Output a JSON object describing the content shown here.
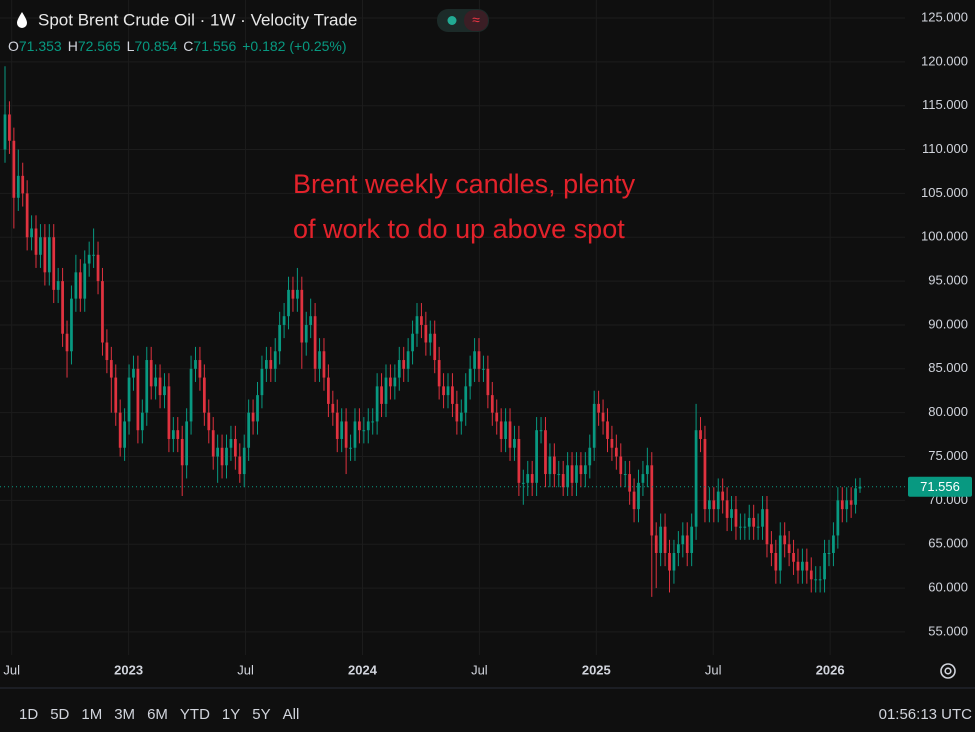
{
  "chart_data": {
    "type": "candlestick",
    "title": "Spot Brent Crude Oil · 1W · Velocity Trade",
    "ohlc_labels": [
      "O",
      "H",
      "L",
      "C"
    ],
    "change": "+0.182 (+0.25%)",
    "annotation": [
      "Brent weekly candles, plenty",
      "of work to do up above spot"
    ],
    "up_color": "#089981",
    "down_color": "#e0323f",
    "grid": true,
    "ylim": [
      52.37,
      127.05
    ],
    "yticks": [
      {
        "value": 55,
        "label": "55.000"
      },
      {
        "value": 60,
        "label": "60.000"
      },
      {
        "value": 65,
        "label": "65.000"
      },
      {
        "value": 70,
        "label": "70.000"
      },
      {
        "value": 75,
        "label": "75.000"
      },
      {
        "value": 80,
        "label": "80.000"
      },
      {
        "value": 85,
        "label": "85.000"
      },
      {
        "value": 90,
        "label": "90.000"
      },
      {
        "value": 95,
        "label": "95.000"
      },
      {
        "value": 100,
        "label": "100.000"
      },
      {
        "value": 105,
        "label": "105.000"
      },
      {
        "value": 110,
        "label": "110.000"
      },
      {
        "value": 115,
        "label": "115.000"
      },
      {
        "value": 120,
        "label": "120.000"
      },
      {
        "value": 125,
        "label": "125.000"
      }
    ],
    "xlim": [
      2022.45,
      2026.32
    ],
    "xticks": [
      {
        "value": 2022.5,
        "label": "Jul"
      },
      2023,
      {
        "value": 2023.5,
        "label": "Jul"
      },
      2024,
      {
        "value": 2024.5,
        "label": "Jul"
      },
      2025,
      {
        "value": 2025.5,
        "label": "Jul"
      },
      2026
    ],
    "open": [
      110,
      114,
      111,
      104.5,
      107,
      105,
      100,
      101,
      98,
      100,
      96,
      100,
      94,
      95,
      89,
      87,
      93,
      96,
      93,
      97,
      98,
      98,
      95,
      88,
      86,
      84,
      80,
      76,
      79,
      84,
      85,
      78,
      80,
      86,
      83,
      84,
      82,
      83,
      77,
      78,
      77,
      74,
      79,
      85,
      86,
      84,
      80,
      78,
      75,
      76,
      74,
      76,
      77,
      75,
      73,
      76,
      80,
      79,
      82,
      85,
      86,
      85,
      87,
      90,
      91,
      94,
      93,
      94,
      88,
      90,
      91,
      85,
      87,
      84,
      81,
      80,
      77,
      79,
      76,
      76,
      79,
      78,
      78,
      79,
      79,
      83,
      81,
      84,
      83,
      84,
      86,
      85,
      87,
      89,
      91,
      90,
      88,
      89,
      86,
      83,
      82,
      83,
      81,
      79,
      80,
      83,
      85,
      87,
      85,
      85,
      82,
      80,
      79,
      77,
      79,
      76,
      77,
      72,
      72,
      73,
      72,
      78,
      78,
      73,
      75,
      73,
      73,
      71.5,
      74,
      72,
      74,
      73,
      74,
      76,
      81,
      80,
      79,
      77,
      76,
      75,
      73,
      73,
      71,
      69,
      72,
      73,
      74,
      66,
      64,
      67,
      64,
      62,
      64,
      65,
      66,
      64,
      67,
      78,
      77,
      69,
      70,
      69,
      71,
      70,
      68,
      69,
      67,
      67,
      67,
      68,
      67,
      67,
      69,
      65,
      64,
      62,
      66,
      65,
      64,
      63,
      62,
      63,
      62,
      61,
      61,
      61,
      64,
      64,
      66,
      70,
      69,
      70,
      69.5,
      71.353
    ],
    "high": [
      119.5,
      115.5,
      112.5,
      110,
      108.5,
      106.5,
      102.5,
      102.5,
      101.5,
      101.5,
      101.5,
      101.5,
      96.5,
      96.5,
      90.5,
      94.5,
      98,
      97.5,
      98.5,
      99.5,
      101,
      99.5,
      96.5,
      89.5,
      87.5,
      85.5,
      81.5,
      80.5,
      85.5,
      86.5,
      86.5,
      81.5,
      87.5,
      87.5,
      85.5,
      85.5,
      84.5,
      84.5,
      79.5,
      79.5,
      78.5,
      80.5,
      86.5,
      87.5,
      87.5,
      85.5,
      81.5,
      79.5,
      77.5,
      77.5,
      77.5,
      78.5,
      78.5,
      76.5,
      77.5,
      81.5,
      81.5,
      83.5,
      86.5,
      87.5,
      87.5,
      88.5,
      91.5,
      92.5,
      95.5,
      95.5,
      96.5,
      95.5,
      91.5,
      93,
      92.5,
      88.5,
      88.5,
      85.5,
      82.5,
      81.5,
      80.5,
      80.5,
      77.5,
      80.5,
      80.5,
      79.5,
      80.5,
      80.5,
      84.5,
      84.5,
      85.5,
      85.5,
      85.5,
      87.5,
      87.5,
      88.5,
      90.5,
      92.5,
      92.5,
      91.5,
      90.5,
      90.5,
      87.5,
      84.5,
      84.5,
      84.5,
      82.5,
      81.5,
      84.5,
      86.5,
      88.5,
      88.5,
      86.5,
      86.5,
      83.5,
      81.5,
      80.5,
      80.5,
      80.5,
      78.5,
      78.5,
      73.5,
      74.5,
      74.5,
      79.5,
      79.5,
      79.5,
      76.5,
      76.5,
      74.5,
      74.5,
      75.5,
      75.5,
      75.5,
      75.5,
      75.5,
      77.5,
      82.5,
      82.5,
      81.5,
      80.5,
      78.5,
      77.5,
      76.5,
      74.5,
      74.5,
      72.5,
      73.5,
      74.5,
      76,
      75.5,
      67.5,
      68.5,
      68.5,
      65.5,
      65.5,
      66.5,
      67.5,
      67.5,
      68.5,
      81,
      79.5,
      78.5,
      71.5,
      71.5,
      72.5,
      72.5,
      71.5,
      70.5,
      70.5,
      68.5,
      68.5,
      69.5,
      69.5,
      68.5,
      70.5,
      70.5,
      66.5,
      65.5,
      67.5,
      67.5,
      66.5,
      65.5,
      64.5,
      64.5,
      64.5,
      63.5,
      62.5,
      62.5,
      65.5,
      65.5,
      67.5,
      71.5,
      71.5,
      71.5,
      71.5,
      72.5,
      72.565
    ],
    "low": [
      108.5,
      109.5,
      101,
      103,
      103.5,
      98.5,
      98.5,
      96.5,
      96.5,
      94.5,
      94.5,
      92.5,
      92.5,
      87.5,
      84,
      85.5,
      91.5,
      91.5,
      91.5,
      95.5,
      96.5,
      93.5,
      86.5,
      84.5,
      80,
      78.5,
      75,
      74.5,
      77.5,
      82.5,
      76.5,
      76.5,
      78.5,
      81.5,
      81.5,
      80.5,
      80.5,
      75.5,
      75.5,
      75.5,
      70.5,
      72.5,
      77.5,
      83.5,
      82.5,
      78.5,
      76.5,
      73.5,
      72,
      72.5,
      72.5,
      74.5,
      73.5,
      72,
      71.5,
      74.5,
      77.5,
      77.5,
      80.5,
      83.5,
      83.5,
      83.5,
      85.5,
      88.5,
      89.5,
      91.5,
      91.5,
      85,
      86.5,
      88.5,
      83.5,
      83.5,
      82.5,
      79.5,
      78.5,
      75.5,
      75.5,
      73,
      74.5,
      74.5,
      76.5,
      76.5,
      76.5,
      77.5,
      77.5,
      79.5,
      79.5,
      81.5,
      81.5,
      82.5,
      83.5,
      83.5,
      85.5,
      87.5,
      88.5,
      86.5,
      86.5,
      84.5,
      81.5,
      80.5,
      80.5,
      79.5,
      77.5,
      77.5,
      78.5,
      81.5,
      83.5,
      83.5,
      83.5,
      80.5,
      78.5,
      77.5,
      75.5,
      75.5,
      74.5,
      74.5,
      70.5,
      69.5,
      70.5,
      70.5,
      70.5,
      76.5,
      71.5,
      71.5,
      71.5,
      71.5,
      70.5,
      70.5,
      70.5,
      70.5,
      71.5,
      71.5,
      72.5,
      74.5,
      78.5,
      77.5,
      75.5,
      74.5,
      73.5,
      71.5,
      71.5,
      69.5,
      67.5,
      67.5,
      70.5,
      71.5,
      59,
      60,
      62.5,
      62.5,
      59.5,
      60.5,
      62.5,
      63.5,
      62.5,
      62.5,
      65.5,
      75.5,
      67.5,
      67.5,
      67.5,
      67.5,
      68.5,
      66.5,
      66.5,
      65.5,
      65.5,
      65.5,
      65.5,
      65.5,
      65.5,
      65.5,
      63.5,
      62.5,
      60.5,
      60.5,
      63.5,
      62.5,
      61.5,
      60.5,
      60.5,
      60.5,
      59.5,
      59.5,
      59.5,
      59.5,
      62.5,
      62.5,
      64.5,
      67.5,
      67.5,
      68,
      68.5,
      70.854
    ],
    "close": [
      114,
      111,
      104.5,
      107,
      105,
      100,
      101,
      98,
      100,
      96,
      100,
      94,
      95,
      89,
      87,
      93,
      96,
      93,
      97,
      98,
      98,
      95,
      88,
      86,
      84,
      80,
      76,
      79,
      84,
      85,
      78,
      80,
      86,
      83,
      84,
      82,
      83,
      77,
      78,
      77,
      74,
      79,
      85,
      86,
      84,
      80,
      78,
      75,
      76,
      74,
      76,
      77,
      75,
      73,
      76,
      80,
      79,
      82,
      85,
      86,
      85,
      87,
      90,
      91,
      94,
      93,
      94,
      88,
      90,
      91,
      85,
      87,
      84,
      81,
      80,
      77,
      79,
      76,
      76,
      79,
      78,
      78,
      79,
      79,
      83,
      81,
      84,
      83,
      84,
      86,
      85,
      87,
      89,
      91,
      90,
      88,
      89,
      86,
      83,
      82,
      83,
      81,
      79,
      80,
      83,
      85,
      87,
      85,
      85,
      82,
      80,
      79,
      77,
      79,
      76,
      77,
      72,
      72,
      73,
      72,
      78,
      78,
      73,
      75,
      73,
      73,
      71.5,
      74,
      72,
      74,
      73,
      74,
      76,
      81,
      80,
      79,
      77,
      76,
      75,
      73,
      73,
      71,
      69,
      72,
      73,
      74,
      66,
      64,
      67,
      64,
      62,
      64,
      65,
      66,
      64,
      67,
      78,
      77,
      69,
      70,
      69,
      71,
      70,
      68,
      69,
      67,
      67,
      67,
      68,
      67,
      67,
      69,
      65,
      64,
      62,
      66,
      65,
      64,
      63,
      62,
      63,
      62,
      61,
      61,
      61,
      64,
      64,
      66,
      70,
      69,
      70,
      69.5,
      71.374,
      71.556
    ]
  },
  "toolbar": {
    "ranges": [
      "1D",
      "5D",
      "1M",
      "3M",
      "6M",
      "YTD",
      "1Y",
      "5Y",
      "All"
    ],
    "clock": "01:56:13 UTC"
  }
}
